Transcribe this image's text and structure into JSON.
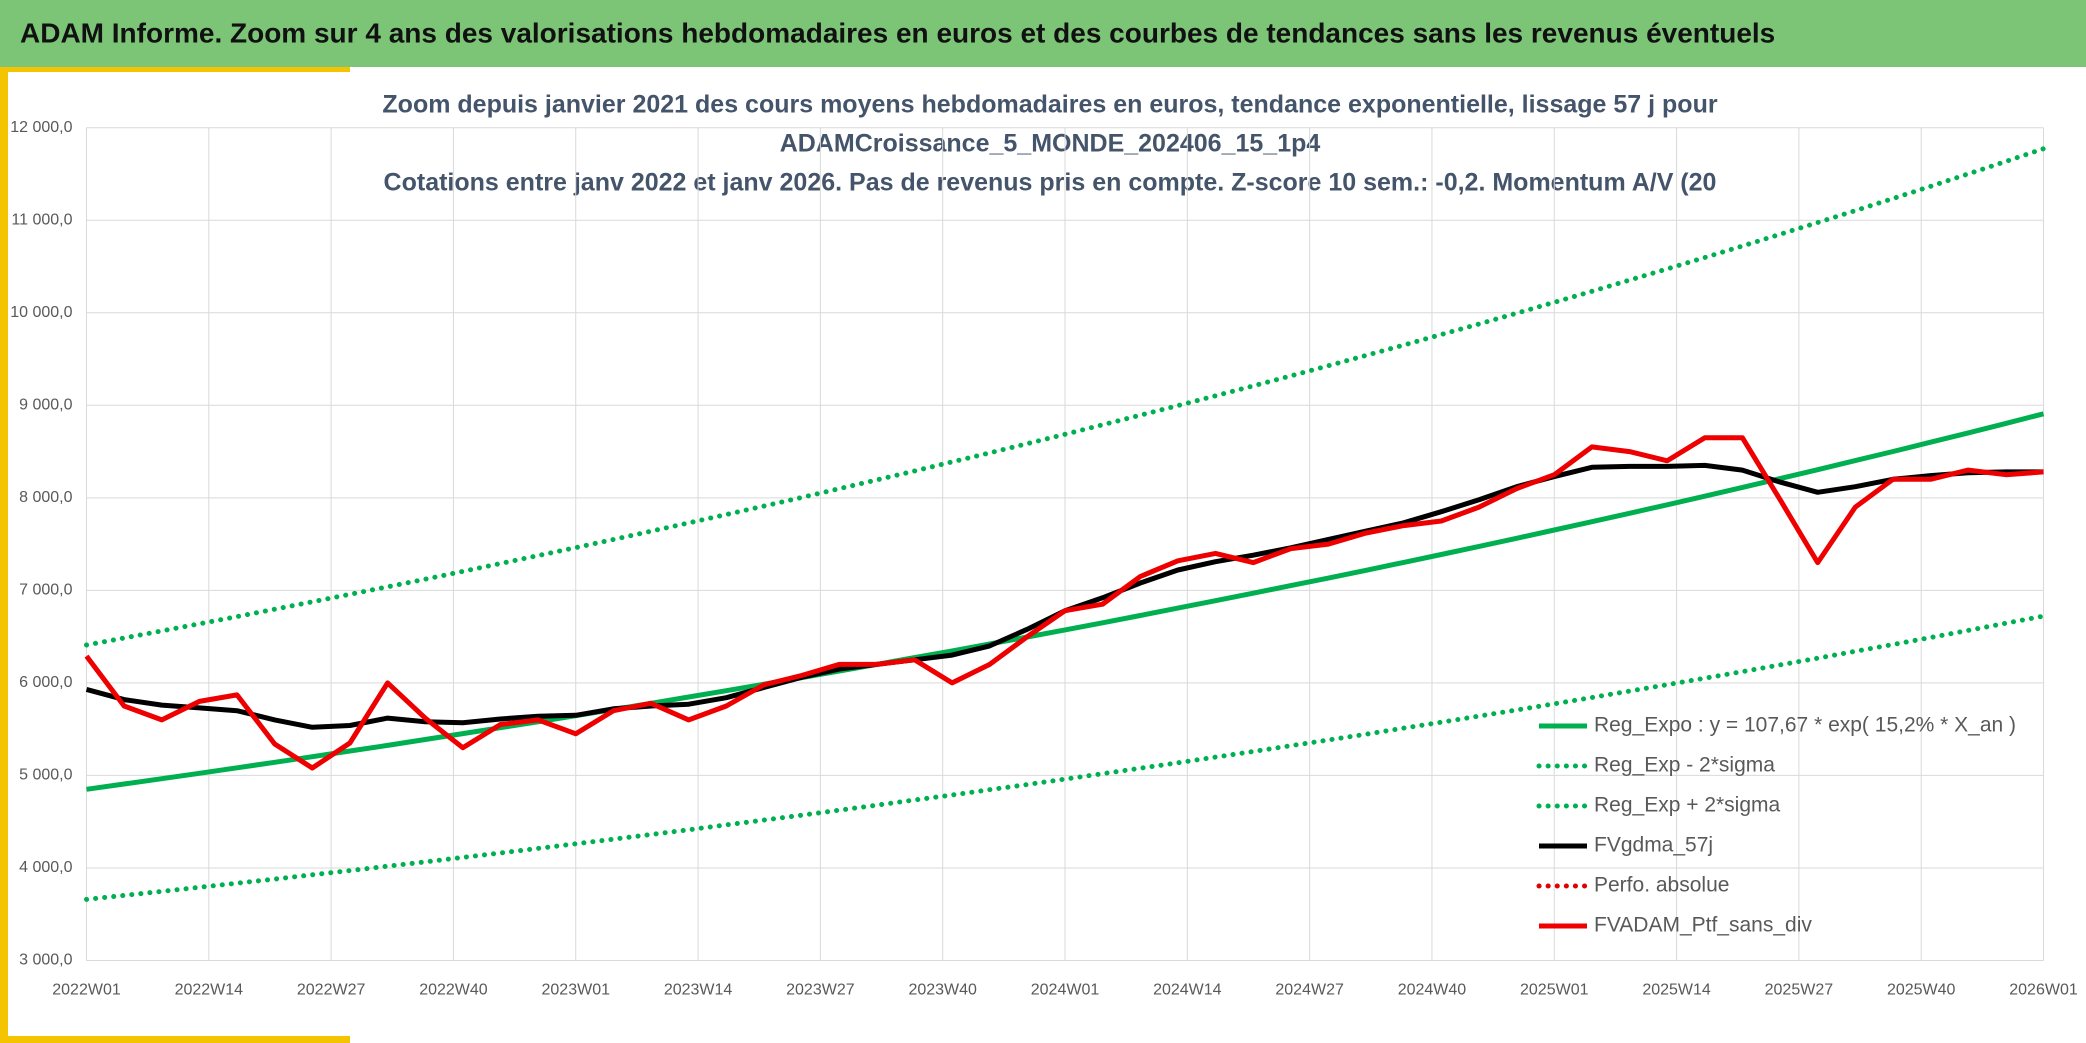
{
  "header": {
    "title": "ADAM Informe. Zoom sur 4 ans des valorisations hebdomadaires en euros et des courbes de tendances sans les revenus éventuels"
  },
  "chart_data": {
    "type": "line",
    "title_lines": [
      "Zoom depuis janvier 2021 des cours moyens hebdomadaires en euros, tendance exponentielle, lissage 57 j pour",
      "ADAMCroissance_5_MONDE_202406_15_1p4",
      "Cotations entre janv 2022 et janv 2026. Pas de revenus pris en compte. Z-score 10 sem.: -0,2. Momentum A/V (20"
    ],
    "x": [
      0,
      4,
      8,
      12,
      16,
      20,
      24,
      28,
      32,
      36,
      40,
      44,
      48,
      52,
      56,
      60,
      64,
      68,
      72,
      76,
      80,
      84,
      88,
      92,
      96,
      100,
      104,
      108,
      112,
      116,
      120,
      124,
      128,
      132,
      136,
      140,
      144,
      148,
      152,
      156,
      160,
      164,
      168,
      172,
      176,
      180,
      184,
      188,
      192,
      196,
      200,
      204,
      208
    ],
    "xlim": [
      0,
      208
    ],
    "xticks": [
      {
        "value": 0,
        "label": "2022W01"
      },
      {
        "value": 13,
        "label": "2022W14"
      },
      {
        "value": 26,
        "label": "2022W27"
      },
      {
        "value": 39,
        "label": "2022W40"
      },
      {
        "value": 52,
        "label": "2023W01"
      },
      {
        "value": 65,
        "label": "2023W14"
      },
      {
        "value": 78,
        "label": "2023W27"
      },
      {
        "value": 91,
        "label": "2023W40"
      },
      {
        "value": 104,
        "label": "2024W01"
      },
      {
        "value": 117,
        "label": "2024W14"
      },
      {
        "value": 130,
        "label": "2024W27"
      },
      {
        "value": 143,
        "label": "2024W40"
      },
      {
        "value": 156,
        "label": "2025W01"
      },
      {
        "value": 169,
        "label": "2025W14"
      },
      {
        "value": 182,
        "label": "2025W27"
      },
      {
        "value": 195,
        "label": "2025W40"
      },
      {
        "value": 208,
        "label": "2026W01"
      }
    ],
    "ylim": [
      3000,
      12000
    ],
    "yticks": [
      {
        "value": 3000,
        "label": "3 000,0"
      },
      {
        "value": 4000,
        "label": "4 000,0"
      },
      {
        "value": 5000,
        "label": "5 000,0"
      },
      {
        "value": 6000,
        "label": "6 000,0"
      },
      {
        "value": 7000,
        "label": "7 000,0"
      },
      {
        "value": 8000,
        "label": "8 000,0"
      },
      {
        "value": 9000,
        "label": "9 000,0"
      },
      {
        "value": 10000,
        "label": "10 000,0"
      },
      {
        "value": 11000,
        "label": "11 000,0"
      },
      {
        "value": 12000,
        "label": "12 000,0"
      }
    ],
    "grid": true,
    "legend": "lower right",
    "series": [
      {
        "name": "Reg_Expo : y = 107,67 * exp( 15,2% *  X_an )",
        "color": "#00b050",
        "dash": "solid",
        "values": [
          4850,
          4907,
          4965,
          5023,
          5082,
          5142,
          5202,
          5264,
          5325,
          5388,
          5452,
          5516,
          5580,
          5646,
          5712,
          5780,
          5848,
          5916,
          5986,
          6056,
          6128,
          6200,
          6273,
          6346,
          6421,
          6496,
          6573,
          6650,
          6728,
          6808,
          6888,
          6969,
          7051,
          7133,
          7217,
          7302,
          7388,
          7475,
          7563,
          7652,
          7742,
          7833,
          7925,
          8018,
          8113,
          8208,
          8304,
          8402,
          8501,
          8601,
          8702,
          8804,
          8908
        ]
      },
      {
        "name": "Reg_Exp - 2*sigma",
        "color": "#00b050",
        "dash": "dotted",
        "values": [
          3660,
          3703,
          3747,
          3791,
          3835,
          3880,
          3926,
          3972,
          4019,
          4066,
          4114,
          4162,
          4211,
          4261,
          4311,
          4362,
          4413,
          4465,
          4517,
          4570,
          4624,
          4678,
          4734,
          4789,
          4846,
          4902,
          4960,
          5019,
          5078,
          5137,
          5198,
          5259,
          5321,
          5383,
          5446,
          5511,
          5575,
          5641,
          5707,
          5774,
          5842,
          5911,
          5981,
          6051,
          6122,
          6194,
          6267,
          6341,
          6415,
          6491,
          6567,
          6645,
          6722
        ]
      },
      {
        "name": "Reg_Exp + 2*sigma",
        "color": "#00b050",
        "dash": "dotted",
        "values": [
          6410,
          6485,
          6562,
          6639,
          6717,
          6796,
          6876,
          6957,
          7039,
          7121,
          7205,
          7290,
          7376,
          7462,
          7550,
          7639,
          7729,
          7820,
          7911,
          8004,
          8099,
          8194,
          8290,
          8388,
          8486,
          8586,
          8687,
          8789,
          8893,
          8997,
          9103,
          9210,
          9318,
          9428,
          9539,
          9651,
          9765,
          9879,
          9995,
          10113,
          10232,
          10353,
          10474,
          10597,
          10722,
          10848,
          10975,
          11104,
          11235,
          11367,
          11501,
          11636,
          11773
        ]
      },
      {
        "name": "FVgdma_57j",
        "color": "#000000",
        "dash": "solid",
        "values": [
          5930,
          5820,
          5760,
          5730,
          5700,
          5600,
          5520,
          5540,
          5620,
          5580,
          5570,
          5610,
          5640,
          5650,
          5720,
          5750,
          5770,
          5840,
          5950,
          6060,
          6150,
          6200,
          6250,
          6300,
          6400,
          6580,
          6780,
          6920,
          7080,
          7220,
          7310,
          7380,
          7460,
          7550,
          7640,
          7730,
          7850,
          7980,
          8120,
          8230,
          8330,
          8340,
          8340,
          8350,
          8300,
          8170,
          8060,
          8120,
          8200,
          8240,
          8270,
          8280,
          8280
        ]
      },
      {
        "name": "Perfo. absolue",
        "color": "#e00000",
        "dash": "dotted"
      },
      {
        "name": "FVADAM_Ptf_sans_div",
        "color": "#ee0000",
        "dash": "solid",
        "values": [
          6290,
          5750,
          5600,
          5800,
          5870,
          5340,
          5080,
          5350,
          6000,
          5620,
          5300,
          5550,
          5600,
          5450,
          5700,
          5780,
          5600,
          5750,
          5980,
          6080,
          6200,
          6200,
          6250,
          6000,
          6200,
          6500,
          6780,
          6850,
          7150,
          7320,
          7400,
          7300,
          7450,
          7500,
          7620,
          7700,
          7750,
          7900,
          8100,
          8250,
          8550,
          8500,
          8400,
          8650,
          8650,
          7980,
          7300,
          7900,
          8200,
          8200,
          8300,
          8250,
          8280
        ]
      }
    ]
  }
}
